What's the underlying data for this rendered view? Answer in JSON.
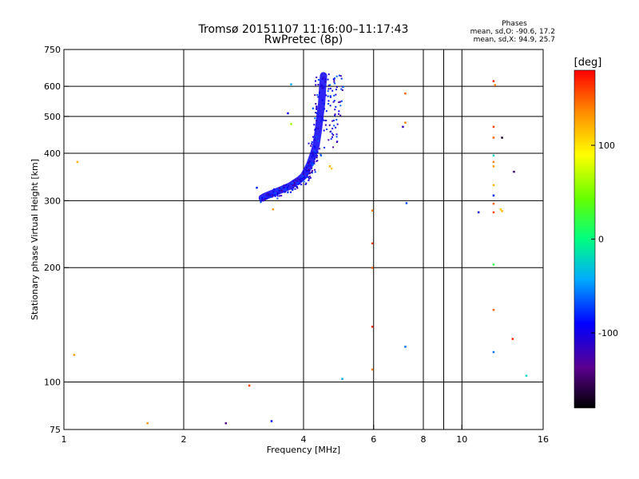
{
  "chart_data": {
    "type": "scatter",
    "title": "Tromsø 20151107 11:16:00–11:17:43",
    "subtitle": "RwPretec (8p)",
    "xlabel": "Frequency [MHz]",
    "ylabel": "Stationary phase Virtual Height [km]",
    "x_scale": "log",
    "y_scale": "log",
    "xlim": [
      1,
      16
    ],
    "ylim": [
      75,
      750
    ],
    "x_ticks": [
      1,
      2,
      4,
      6,
      8,
      10,
      16
    ],
    "y_ticks": [
      75,
      100,
      200,
      300,
      400,
      500,
      600,
      750
    ],
    "grid": true,
    "info": {
      "heading": "Phases",
      "line1": "mean, sd,O: -90.6, 17.2",
      "line2": "mean, sd,X:  94.9, 25.7"
    },
    "colorbar": {
      "label": "[deg]",
      "range": [
        -180,
        180
      ],
      "ticks": [
        100,
        0,
        -100
      ]
    },
    "main_trace": {
      "color_phase": -95,
      "points": [
        [
          3.15,
          305
        ],
        [
          3.2,
          308
        ],
        [
          3.3,
          312
        ],
        [
          3.4,
          316
        ],
        [
          3.5,
          320
        ],
        [
          3.6,
          324
        ],
        [
          3.7,
          328
        ],
        [
          3.8,
          334
        ],
        [
          3.9,
          340
        ],
        [
          4.0,
          348
        ],
        [
          4.05,
          356
        ],
        [
          4.1,
          365
        ],
        [
          4.15,
          375
        ],
        [
          4.2,
          388
        ],
        [
          4.25,
          402
        ],
        [
          4.3,
          420
        ],
        [
          4.33,
          440
        ],
        [
          4.36,
          460
        ],
        [
          4.38,
          480
        ],
        [
          4.4,
          500
        ],
        [
          4.42,
          520
        ],
        [
          4.44,
          540
        ],
        [
          4.45,
          560
        ],
        [
          4.46,
          580
        ],
        [
          4.47,
          600
        ],
        [
          4.48,
          620
        ],
        [
          4.49,
          640
        ]
      ]
    },
    "scatter_points": [
      {
        "x": 1.08,
        "y": 380,
        "phase": 120
      },
      {
        "x": 1.06,
        "y": 118,
        "phase": 130
      },
      {
        "x": 1.62,
        "y": 78,
        "phase": 130
      },
      {
        "x": 2.55,
        "y": 78,
        "phase": -140
      },
      {
        "x": 2.92,
        "y": 98,
        "phase": 160
      },
      {
        "x": 3.05,
        "y": 325,
        "phase": -80
      },
      {
        "x": 3.32,
        "y": 79,
        "phase": -90
      },
      {
        "x": 3.35,
        "y": 285,
        "phase": 130
      },
      {
        "x": 3.72,
        "y": 608,
        "phase": -40
      },
      {
        "x": 3.72,
        "y": 478,
        "phase": 60
      },
      {
        "x": 3.65,
        "y": 510,
        "phase": -100
      },
      {
        "x": 4.65,
        "y": 370,
        "phase": 120
      },
      {
        "x": 4.7,
        "y": 365,
        "phase": 110
      },
      {
        "x": 5.0,
        "y": 102,
        "phase": -40
      },
      {
        "x": 5.95,
        "y": 283,
        "phase": 140
      },
      {
        "x": 5.95,
        "y": 232,
        "phase": 160
      },
      {
        "x": 5.95,
        "y": 200,
        "phase": 150
      },
      {
        "x": 5.95,
        "y": 140,
        "phase": 165
      },
      {
        "x": 5.95,
        "y": 108,
        "phase": 140
      },
      {
        "x": 7.2,
        "y": 575,
        "phase": 150
      },
      {
        "x": 7.2,
        "y": 482,
        "phase": 140
      },
      {
        "x": 7.1,
        "y": 470,
        "phase": -120
      },
      {
        "x": 7.25,
        "y": 296,
        "phase": -70
      },
      {
        "x": 7.2,
        "y": 124,
        "phase": -60
      },
      {
        "x": 11.0,
        "y": 280,
        "phase": -100
      },
      {
        "x": 12.0,
        "y": 620,
        "phase": 170
      },
      {
        "x": 12.1,
        "y": 605,
        "phase": 140
      },
      {
        "x": 12.0,
        "y": 470,
        "phase": 160
      },
      {
        "x": 12.0,
        "y": 440,
        "phase": 150
      },
      {
        "x": 12.0,
        "y": 395,
        "phase": -20
      },
      {
        "x": 12.0,
        "y": 380,
        "phase": 140
      },
      {
        "x": 12.0,
        "y": 370,
        "phase": 130
      },
      {
        "x": 12.0,
        "y": 330,
        "phase": 120
      },
      {
        "x": 12.0,
        "y": 310,
        "phase": -80
      },
      {
        "x": 12.0,
        "y": 295,
        "phase": 150
      },
      {
        "x": 12.0,
        "y": 280,
        "phase": 160
      },
      {
        "x": 12.0,
        "y": 204,
        "phase": 20
      },
      {
        "x": 12.0,
        "y": 155,
        "phase": 150
      },
      {
        "x": 12.0,
        "y": 120,
        "phase": -60
      },
      {
        "x": 12.6,
        "y": 440,
        "phase": -170
      },
      {
        "x": 12.6,
        "y": 282,
        "phase": 120
      },
      {
        "x": 12.5,
        "y": 285,
        "phase": 110
      },
      {
        "x": 13.5,
        "y": 358,
        "phase": -150
      },
      {
        "x": 13.4,
        "y": 130,
        "phase": 170
      },
      {
        "x": 14.5,
        "y": 104,
        "phase": -20
      }
    ]
  }
}
